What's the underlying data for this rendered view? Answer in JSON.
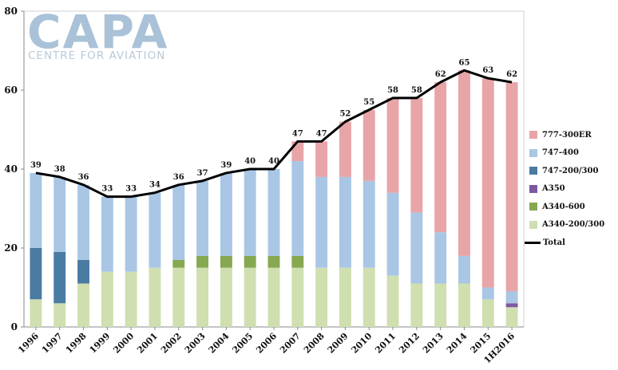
{
  "logo": {
    "main": "CAPA",
    "sub": "CENTRE FOR AVIATION"
  },
  "chart_data": {
    "type": "bar",
    "stacked": true,
    "categories": [
      "1996",
      "1997",
      "1998",
      "1999",
      "2000",
      "2001",
      "2002",
      "2003",
      "2004",
      "2005",
      "2006",
      "2007",
      "2008",
      "2009",
      "2010",
      "2011",
      "2012",
      "2013",
      "2014",
      "2015",
      "1H2016"
    ],
    "series": [
      {
        "name": "A340-200/300",
        "color": "#cfdfb0",
        "values": [
          7,
          6,
          11,
          14,
          14,
          15,
          15,
          15,
          15,
          15,
          15,
          15,
          15,
          15,
          15,
          13,
          11,
          11,
          11,
          7,
          5
        ]
      },
      {
        "name": "A340-600",
        "color": "#86a850",
        "values": [
          0,
          0,
          0,
          0,
          0,
          0,
          2,
          3,
          3,
          3,
          3,
          3,
          0,
          0,
          0,
          0,
          0,
          0,
          0,
          0,
          0
        ]
      },
      {
        "name": "A350",
        "color": "#7b5aa0",
        "values": [
          0,
          0,
          0,
          0,
          0,
          0,
          0,
          0,
          0,
          0,
          0,
          0,
          0,
          0,
          0,
          0,
          0,
          0,
          0,
          0,
          1
        ]
      },
      {
        "name": "747-200/300",
        "color": "#4a7ba3",
        "values": [
          13,
          13,
          6,
          0,
          0,
          0,
          0,
          0,
          0,
          0,
          0,
          0,
          0,
          0,
          0,
          0,
          0,
          0,
          0,
          0,
          0
        ]
      },
      {
        "name": "747-400",
        "color": "#a9c6e5",
        "values": [
          19,
          19,
          19,
          19,
          19,
          19,
          19,
          19,
          21,
          22,
          22,
          24,
          23,
          23,
          22,
          21,
          18,
          13,
          7,
          3,
          3
        ]
      },
      {
        "name": "777-300ER",
        "color": "#e8a5a8",
        "values": [
          0,
          0,
          0,
          0,
          0,
          0,
          0,
          0,
          0,
          0,
          0,
          5,
          9,
          14,
          18,
          24,
          29,
          38,
          47,
          53,
          53
        ]
      }
    ],
    "total": {
      "name": "Total",
      "color": "#000000",
      "values": [
        39,
        38,
        36,
        33,
        33,
        34,
        36,
        37,
        39,
        40,
        40,
        47,
        47,
        52,
        55,
        58,
        58,
        62,
        65,
        63,
        62
      ]
    },
    "legend_order": [
      "777-300ER",
      "747-400",
      "747-200/300",
      "A350",
      "A340-600",
      "A340-200/300",
      "Total"
    ],
    "legend_position": "right",
    "ylim": [
      0,
      80
    ],
    "yticks": [
      "0",
      "20",
      "40",
      "60",
      "80"
    ],
    "grid": false
  }
}
